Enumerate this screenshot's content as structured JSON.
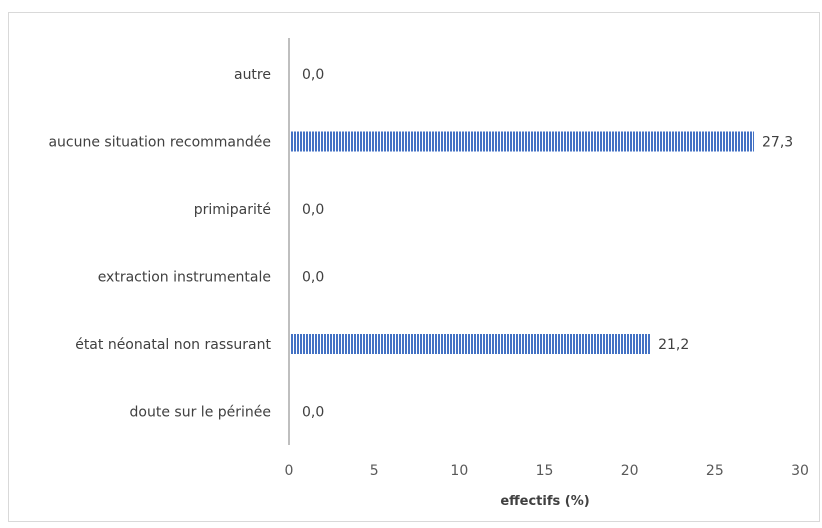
{
  "chart_data": {
    "type": "bar",
    "orientation": "horizontal",
    "categories": [
      "autre",
      "aucune situation recommandée",
      "primiparité",
      "extraction instrumentale",
      "état néonatal non rassurant",
      "doute sur le périnée"
    ],
    "values": [
      0.0,
      27.3,
      0.0,
      0.0,
      21.2,
      0.0
    ],
    "data_labels": [
      "0,0",
      "27,3",
      "0,0",
      "0,0",
      "21,2",
      "0,0"
    ],
    "xlabel": "effectifs (%)",
    "ylabel": "",
    "xlim": [
      0,
      30
    ],
    "x_ticks": [
      0,
      5,
      10,
      15,
      20,
      25,
      30
    ],
    "x_tick_labels": [
      "0",
      "5",
      "10",
      "15",
      "20",
      "25",
      "30"
    ],
    "grid": false,
    "legend": "none",
    "bar_color": "#4472c4",
    "bar_pattern": "vertical-stripes"
  }
}
